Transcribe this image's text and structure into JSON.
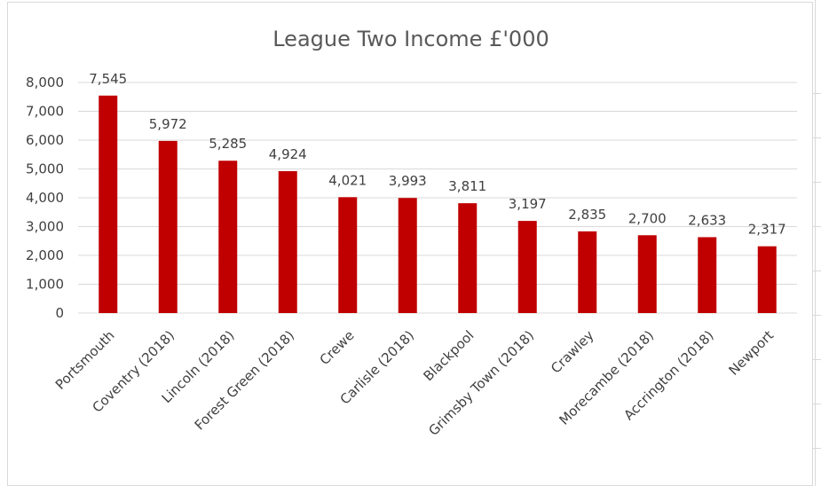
{
  "chart_data": {
    "type": "bar",
    "title": "League Two Income £'000",
    "categories": [
      "Portsmouth",
      "Coventry (2018)",
      "Lincoln (2018)",
      "Forest Green (2018)",
      "Crewe",
      "Carlisle (2018)",
      "Blackpool",
      "Grimsby Town (2018)",
      "Crawley",
      "Morecambe (2018)",
      "Accrington (2018)",
      "Newport"
    ],
    "values": [
      7545,
      5972,
      5285,
      4924,
      4021,
      3993,
      3811,
      3197,
      2835,
      2700,
      2633,
      2317
    ],
    "value_labels": [
      "7,545",
      "5,972",
      "5,285",
      "4,924",
      "4,021",
      "3,993",
      "3,811",
      "3,197",
      "2,835",
      "2,700",
      "2,633",
      "2,317"
    ],
    "yticks": [
      "0",
      "1,000",
      "2,000",
      "3,000",
      "4,000",
      "5,000",
      "6,000",
      "7,000",
      "8,000"
    ],
    "ylim": [
      0,
      8000
    ],
    "grid": true,
    "legend": "none",
    "bar_color": "#c00000",
    "grid_color": "#d9d9d9"
  }
}
